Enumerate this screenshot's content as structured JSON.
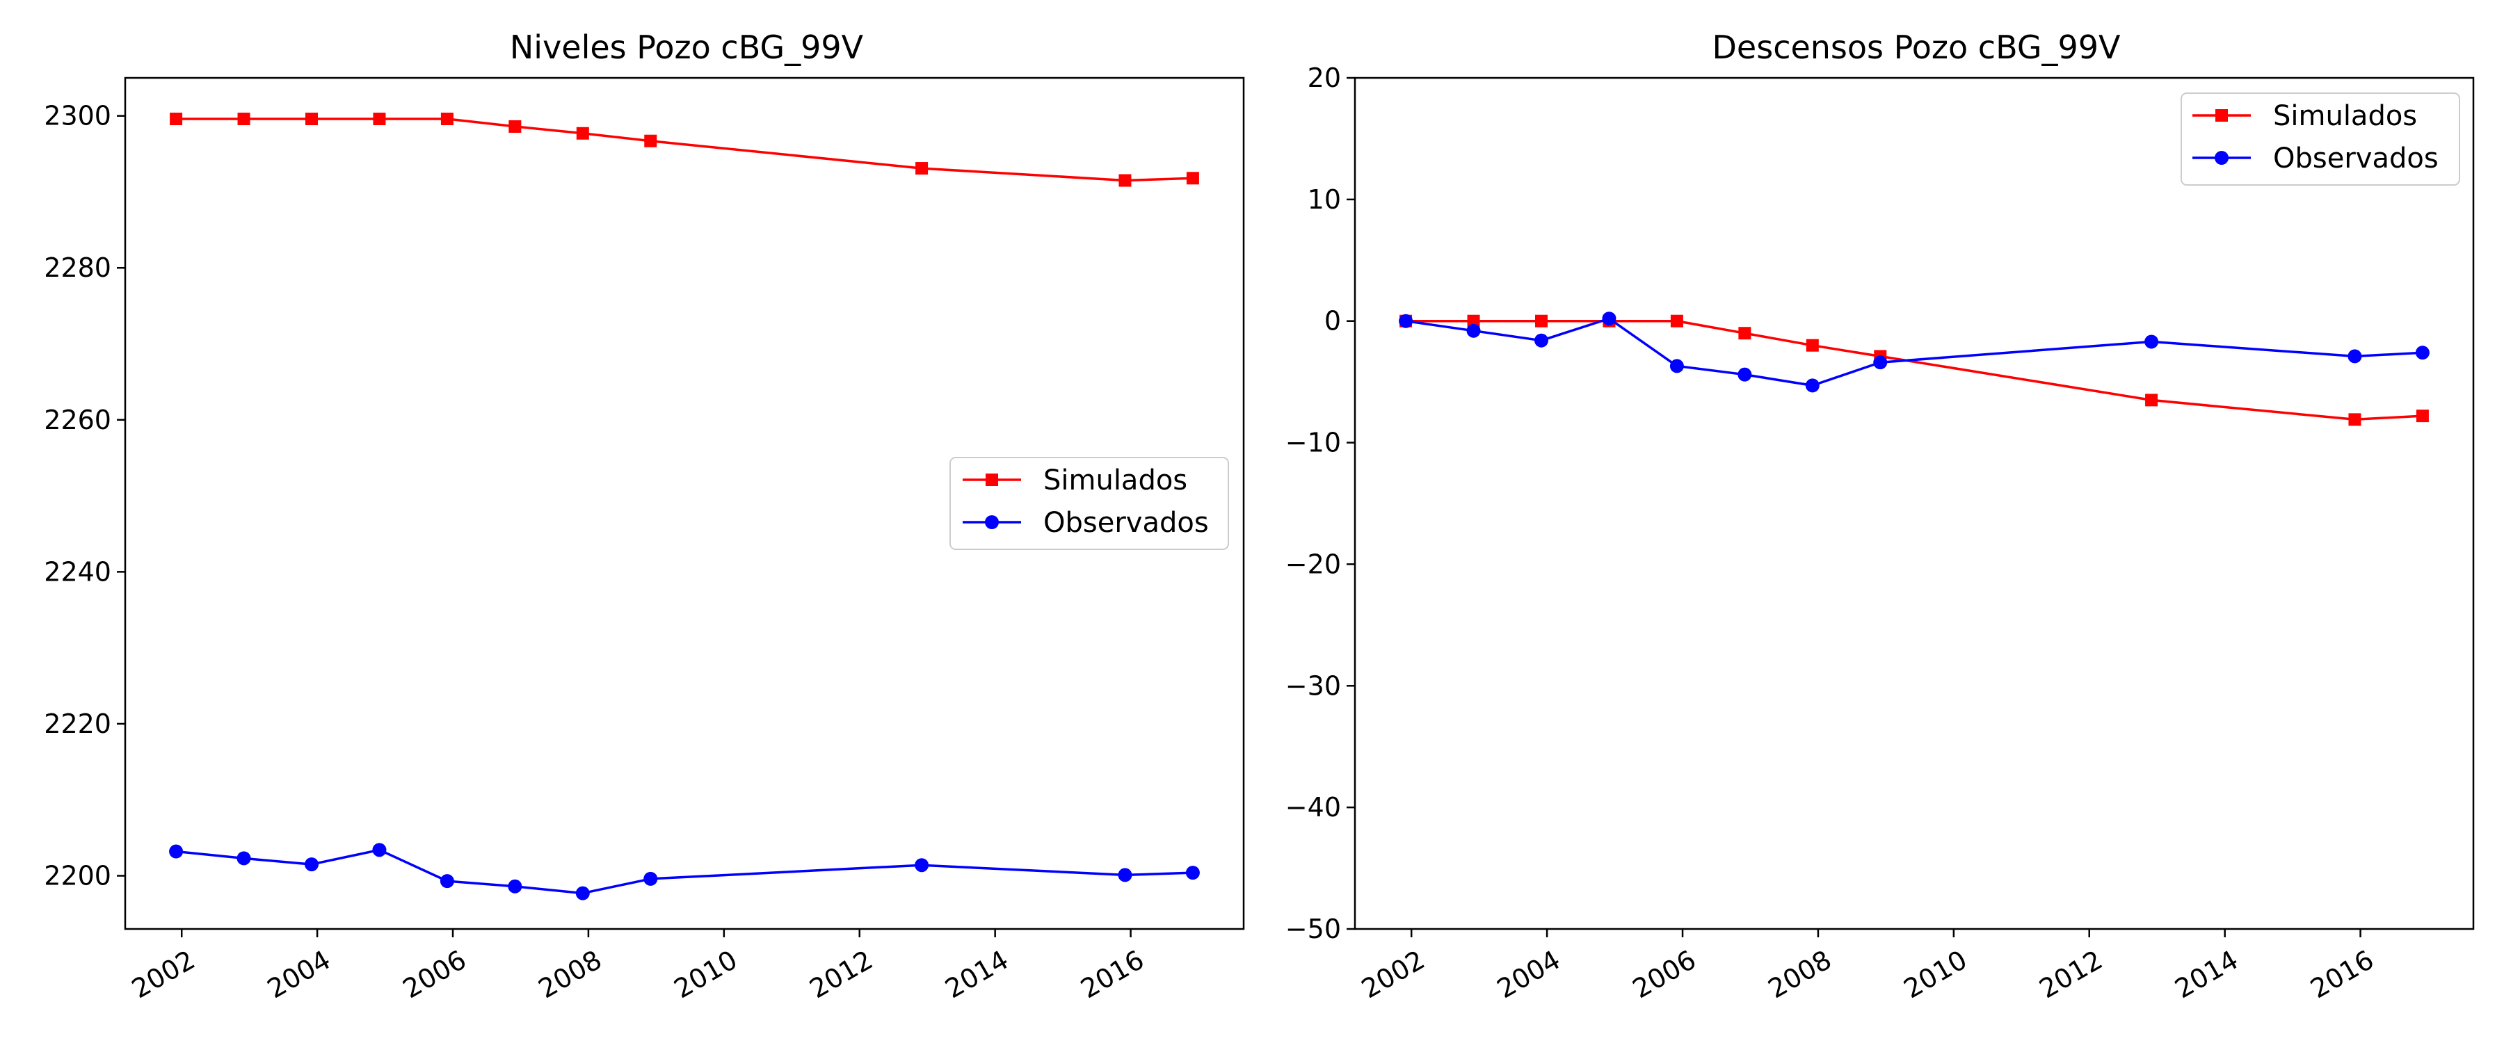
{
  "chart_data": [
    {
      "type": "line",
      "title": "Niveles Pozo cBG_99V",
      "xlabel": "",
      "ylabel": "",
      "x_ticks": [
        "2002",
        "2004",
        "2006",
        "2008",
        "2010",
        "2012",
        "2014",
        "2016"
      ],
      "y_ticks": [
        "2200",
        "2220",
        "2240",
        "2260",
        "2280",
        "2300"
      ],
      "xlim": [
        "2001-03",
        "2017-09"
      ],
      "ylim": [
        2193,
        2305
      ],
      "grid": false,
      "legend_position": "center-right",
      "x": [
        "2001-12",
        "2002-12",
        "2003-12",
        "2004-12",
        "2005-12",
        "2006-12",
        "2007-12",
        "2008-12",
        "2012-12",
        "2015-12",
        "2016-12"
      ],
      "series": [
        {
          "name": "Simulados",
          "color": "#ff0000",
          "marker": "square",
          "values": [
            2299.6,
            2299.6,
            2299.6,
            2299.6,
            2299.6,
            2298.6,
            2297.7,
            2296.7,
            2293.1,
            2291.5,
            2291.8
          ]
        },
        {
          "name": "Observados",
          "color": "#0000ff",
          "marker": "circle",
          "values": [
            2203.2,
            2202.3,
            2201.5,
            2203.4,
            2199.3,
            2198.6,
            2197.7,
            2199.6,
            2201.4,
            2200.1,
            2200.4
          ]
        }
      ]
    },
    {
      "type": "line",
      "title": "Descensos Pozo cBG_99V",
      "xlabel": "",
      "ylabel": "",
      "x_ticks": [
        "2002",
        "2004",
        "2006",
        "2008",
        "2010",
        "2012",
        "2014",
        "2016"
      ],
      "y_ticks": [
        "−50",
        "−40",
        "−30",
        "−20",
        "−10",
        "0",
        "10",
        "20"
      ],
      "xlim": [
        "2001-03",
        "2017-09"
      ],
      "ylim": [
        -50,
        20
      ],
      "grid": false,
      "legend_position": "top-right",
      "x": [
        "2001-12",
        "2002-12",
        "2003-12",
        "2004-12",
        "2005-12",
        "2006-12",
        "2007-12",
        "2008-12",
        "2012-12",
        "2015-12",
        "2016-12"
      ],
      "series": [
        {
          "name": "Simulados",
          "color": "#ff0000",
          "marker": "square",
          "values": [
            0,
            0,
            0,
            0,
            0,
            -1.0,
            -2.0,
            -2.9,
            -6.5,
            -8.1,
            -7.8
          ]
        },
        {
          "name": "Observados",
          "color": "#0000ff",
          "marker": "circle",
          "values": [
            0,
            -0.8,
            -1.6,
            0.2,
            -3.7,
            -4.4,
            -5.3,
            -3.4,
            -1.7,
            -2.9,
            -2.6
          ]
        }
      ]
    }
  ]
}
